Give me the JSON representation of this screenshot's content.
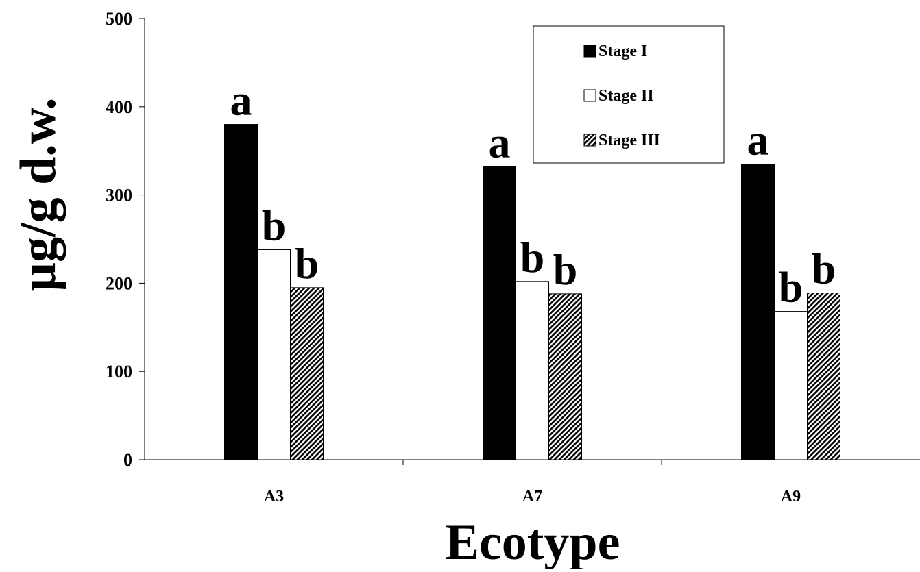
{
  "chart_data": {
    "type": "bar",
    "title": "",
    "xlabel": "Ecotype",
    "ylabel": "µg/g d.w.",
    "categories": [
      "A3",
      "A7",
      "A9"
    ],
    "ylim": [
      0,
      500
    ],
    "yticks": [
      "0",
      "100",
      "200",
      "300",
      "400",
      "500"
    ],
    "grid": false,
    "legend_position": "top-right",
    "series": [
      {
        "name": "Stage I",
        "values": [
          380,
          332,
          335
        ],
        "fill": "#000000",
        "pattern": "solid",
        "sig_labels": [
          "a",
          "a",
          "a"
        ]
      },
      {
        "name": "Stage II",
        "values": [
          238,
          202,
          168
        ],
        "fill": "#ffffff",
        "pattern": "hollow",
        "sig_labels": [
          "b",
          "b",
          "b"
        ]
      },
      {
        "name": "Stage III",
        "values": [
          195,
          188,
          189
        ],
        "fill": "#000000",
        "pattern": "diagonal",
        "sig_labels": [
          "b",
          "b",
          "b"
        ]
      }
    ]
  }
}
